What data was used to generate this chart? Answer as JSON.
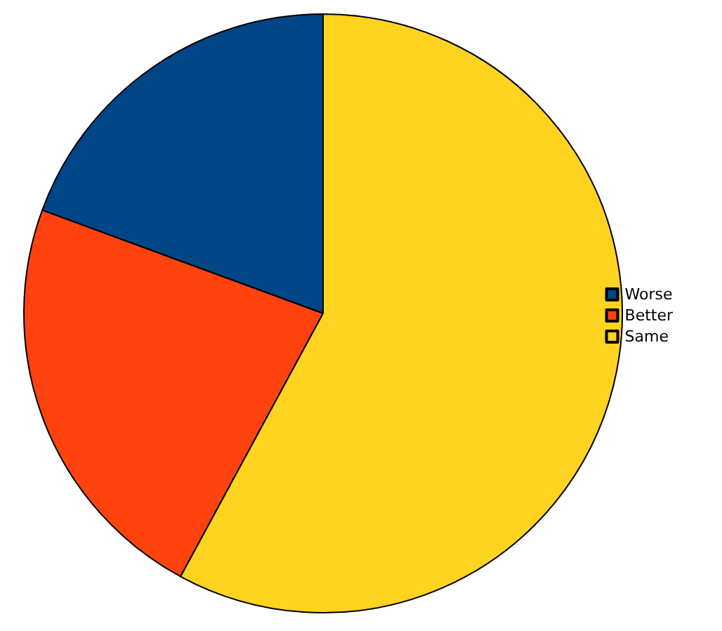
{
  "chart_data": {
    "type": "pie",
    "categories": [
      "Worse",
      "Better",
      "Same"
    ],
    "values": [
      19.4,
      22.7,
      57.9
    ],
    "colors": [
      "#004586",
      "#ff420e",
      "#ffd320"
    ],
    "legend": "right"
  }
}
